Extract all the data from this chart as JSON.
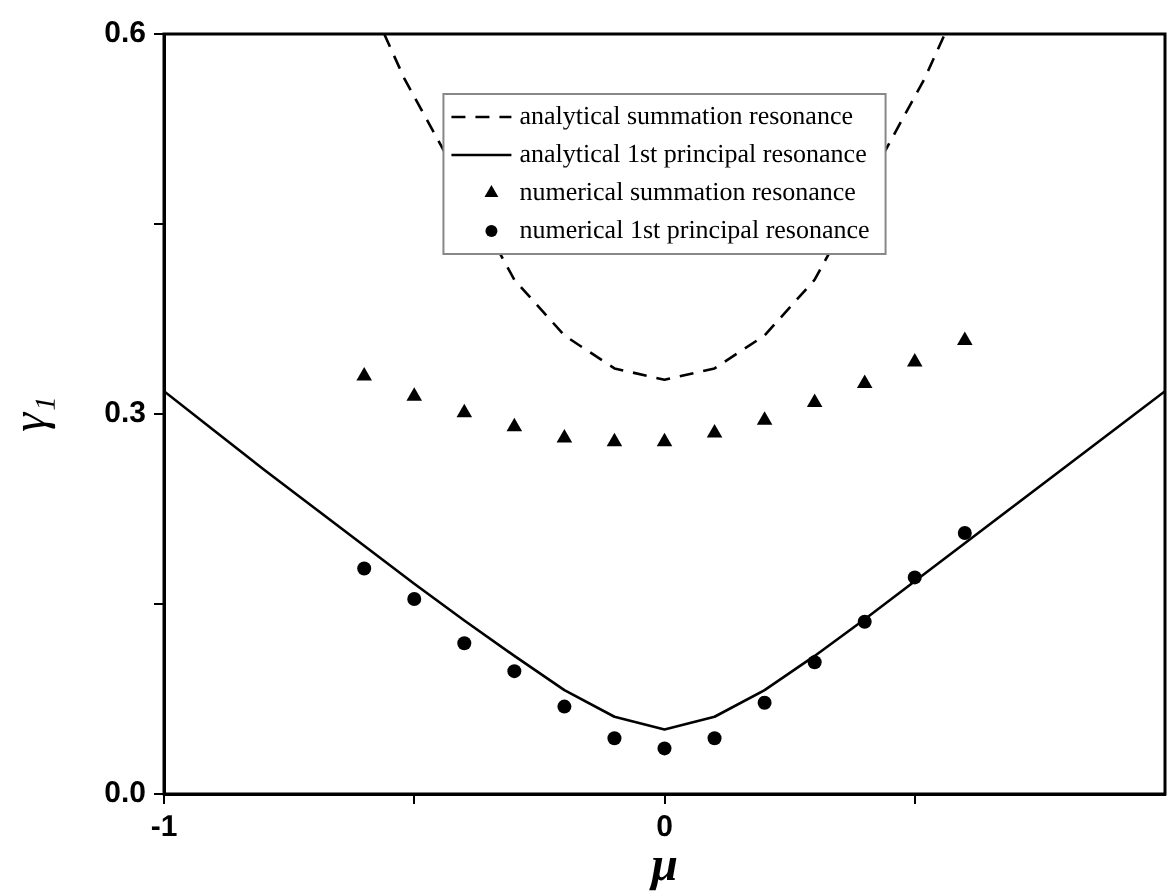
{
  "chart_data": {
    "type": "line",
    "xlabel": "μ",
    "ylabel": "γ₁",
    "xlim": [
      -1,
      1
    ],
    "ylim": [
      0,
      0.6
    ],
    "xticks": [
      -1,
      {
        "value": -0.5,
        "label": null
      },
      0,
      {
        "value": 0.5,
        "label": null
      }
    ],
    "yticks": [
      {
        "value": 0,
        "label": "0.0"
      },
      {
        "value": 0.15,
        "label": null
      },
      0.3,
      {
        "value": 0.45,
        "label": null
      },
      0.6
    ],
    "grid": false,
    "legend": "top",
    "series": [
      {
        "name": "analytical summation resonance",
        "type": "line",
        "color": "#000000",
        "line_style": "dashed",
        "marker": "none",
        "x": [
          -0.56,
          -0.52,
          -0.4,
          -0.3,
          -0.2,
          -0.1,
          0,
          0.1,
          0.2,
          0.3,
          0.4,
          0.52,
          0.56
        ],
        "values": [
          0.6,
          0.565,
          null,
          0.406,
          0.362,
          0.336,
          0.327,
          0.336,
          0.362,
          0.406,
          null,
          0.565,
          0.6
        ]
      },
      {
        "name": "analytical 1st principal resonance",
        "type": "line",
        "color": "#000000",
        "line_style": "solid",
        "marker": "none",
        "x": [
          -1,
          -0.9,
          -0.8,
          -0.7,
          -0.6,
          -0.5,
          -0.4,
          -0.3,
          -0.2,
          -0.1,
          0,
          0.1,
          0.2,
          0.3,
          0.4,
          0.5,
          0.6,
          0.7,
          0.8,
          0.9,
          1
        ],
        "values": [
          0.318,
          0.287,
          0.256,
          0.226,
          0.196,
          0.166,
          0.137,
          0.109,
          0.082,
          0.061,
          0.051,
          0.061,
          0.082,
          0.109,
          0.138,
          0.168,
          0.198,
          0.228,
          0.258,
          0.288,
          0.318
        ]
      },
      {
        "name": "numerical summation resonance",
        "type": "scatter",
        "color": "#000000",
        "marker": "triangle",
        "x": [
          -0.6,
          -0.5,
          -0.4,
          -0.3,
          -0.2,
          -0.1,
          0,
          0.1,
          0.2,
          0.3,
          0.4,
          0.5,
          0.6
        ],
        "values": [
          0.33,
          0.314,
          0.301,
          0.29,
          0.281,
          0.278,
          0.278,
          0.285,
          0.295,
          0.309,
          0.324,
          0.341,
          0.358
        ]
      },
      {
        "name": "numerical 1st principal resonance",
        "type": "scatter",
        "color": "#000000",
        "marker": "circle",
        "x": [
          -0.6,
          -0.5,
          -0.4,
          -0.3,
          -0.2,
          -0.1,
          0,
          0.1,
          0.2,
          0.3,
          0.4,
          0.5,
          0.6
        ],
        "values": [
          0.178,
          0.154,
          0.119,
          0.097,
          0.069,
          0.044,
          0.036,
          0.044,
          0.072,
          0.104,
          0.136,
          0.171,
          0.206
        ]
      }
    ]
  }
}
